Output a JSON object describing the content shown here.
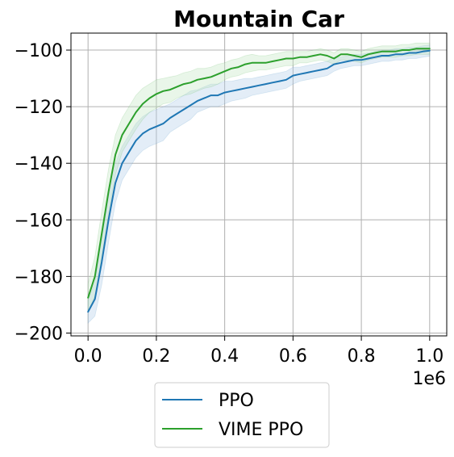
{
  "chart_data": {
    "type": "line",
    "title": "Mountain Car",
    "xlabel": "",
    "ylabel": "",
    "x_offset_label": "1e6",
    "xlim": [
      -0.05,
      1.05
    ],
    "ylim": [
      -201,
      -94
    ],
    "x_ticks": [
      0.0,
      0.2,
      0.4,
      0.6,
      0.8,
      1.0
    ],
    "x_tick_labels": [
      "0.0",
      "0.2",
      "0.4",
      "0.6",
      "0.8",
      "1.0"
    ],
    "y_ticks": [
      -200,
      -180,
      -160,
      -140,
      -120,
      -100
    ],
    "y_tick_labels": [
      "−200",
      "−180",
      "−160",
      "−140",
      "−120",
      "−100"
    ],
    "grid": true,
    "legend_position": "below",
    "x": [
      0.0,
      0.02,
      0.04,
      0.06,
      0.08,
      0.1,
      0.12,
      0.14,
      0.16,
      0.18,
      0.2,
      0.22,
      0.24,
      0.26,
      0.28,
      0.3,
      0.32,
      0.34,
      0.36,
      0.38,
      0.4,
      0.42,
      0.44,
      0.46,
      0.48,
      0.5,
      0.52,
      0.54,
      0.56,
      0.58,
      0.6,
      0.62,
      0.64,
      0.66,
      0.68,
      0.7,
      0.72,
      0.74,
      0.76,
      0.78,
      0.8,
      0.82,
      0.84,
      0.86,
      0.88,
      0.9,
      0.92,
      0.94,
      0.96,
      0.98,
      1.0
    ],
    "series": [
      {
        "name": "PPO",
        "color": "#1f77b4",
        "band_color": "#aecbe8",
        "values": [
          -192.5,
          -188,
          -175,
          -160,
          -147,
          -140,
          -136,
          -132,
          -129.5,
          -128,
          -127,
          -126,
          -124,
          -122.5,
          -121,
          -119.5,
          -118,
          -117,
          -116,
          -116,
          -115,
          -114.5,
          -114,
          -113.5,
          -113,
          -112.5,
          -112,
          -111.5,
          -111,
          -110.5,
          -109,
          -108.5,
          -108,
          -107.5,
          -107,
          -106.5,
          -105,
          -104.5,
          -104,
          -103.5,
          -103.5,
          -103,
          -102.5,
          -102,
          -102,
          -101.5,
          -101.5,
          -101,
          -101,
          -100.5,
          -100.2
        ],
        "band": [
          4,
          6,
          8,
          8,
          7,
          6,
          6,
          6,
          6,
          6,
          6,
          6,
          5,
          5,
          5,
          5,
          4,
          4,
          4,
          4,
          4,
          3.5,
          3.5,
          3.5,
          3,
          3,
          3,
          3,
          3,
          3,
          3,
          2.5,
          2.5,
          2.5,
          2.5,
          2.5,
          2.5,
          2,
          2,
          2,
          2,
          2,
          2,
          2,
          2,
          2,
          2,
          2,
          2,
          2,
          2
        ]
      },
      {
        "name": "VIME PPO",
        "color": "#2ca02c",
        "band_color": "#bfe6bf",
        "values": [
          -187.5,
          -180,
          -165,
          -150,
          -137,
          -130,
          -126,
          -122,
          -119,
          -117,
          -115.5,
          -114.5,
          -114,
          -113,
          -112,
          -111.5,
          -110.5,
          -110,
          -109.5,
          -108.5,
          -107.5,
          -106.5,
          -106,
          -105,
          -104.5,
          -104.5,
          -104.5,
          -104,
          -103.5,
          -103,
          -103,
          -102.5,
          -102.5,
          -102,
          -101.5,
          -102,
          -103,
          -101.5,
          -101.5,
          -102,
          -102.5,
          -101.5,
          -101,
          -100.5,
          -100.5,
          -100.5,
          -100,
          -100,
          -99.5,
          -99.5,
          -99.5
        ],
        "band": [
          5,
          7,
          8,
          8,
          7,
          6,
          6,
          6,
          5.5,
          5,
          5,
          4.5,
          4.5,
          4,
          4,
          4,
          4,
          3.5,
          3.5,
          3.5,
          3,
          3,
          3,
          3,
          3,
          2.5,
          2.5,
          2.5,
          2.5,
          2.5,
          2.5,
          2,
          2,
          2,
          2,
          2,
          2,
          2,
          2,
          2,
          2,
          2,
          2,
          2,
          2,
          2,
          2,
          2,
          2,
          2,
          2
        ]
      }
    ]
  }
}
